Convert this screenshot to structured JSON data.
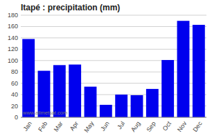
{
  "chart_data": {
    "type": "bar",
    "title": "Itapé : precipitation (mm)",
    "categories": [
      "Jan",
      "Feb",
      "Mar",
      "Apr",
      "May",
      "Jun",
      "Jul",
      "Aug",
      "Sep",
      "Oct",
      "Nov",
      "Dec"
    ],
    "values": [
      138,
      82,
      92,
      93,
      54,
      22,
      40,
      39,
      50,
      101,
      170,
      163
    ],
    "color": "#0000ee",
    "ylim": [
      0,
      180
    ],
    "yticks": [
      0,
      20,
      40,
      60,
      80,
      100,
      120,
      140,
      160,
      180
    ],
    "grid": true,
    "annotations": [
      "www.allmetsat.com"
    ]
  }
}
